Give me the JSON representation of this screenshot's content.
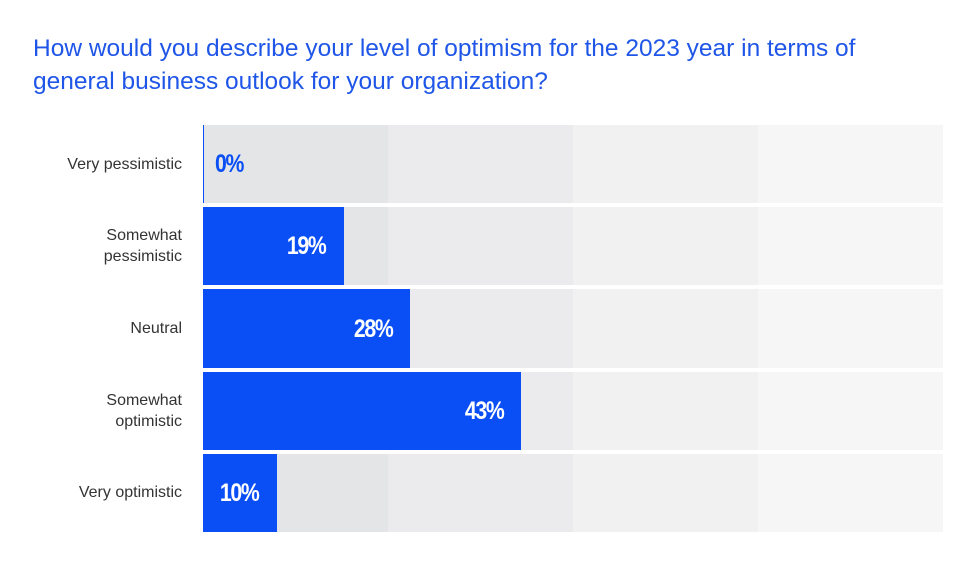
{
  "chart_data": {
    "type": "hbar",
    "title": "How would you describe your level of optimism for the 2023 year in terms of general business outlook for your organization?",
    "categories": [
      "Very pessimistic",
      "Somewhat pessimistic",
      "Neutral",
      "Somewhat optimistic",
      "Very optimistic"
    ],
    "values": [
      0,
      19,
      28,
      43,
      10
    ],
    "value_labels": [
      "0%",
      "19%",
      "28%",
      "43%",
      "10%"
    ],
    "color": "#0a4ff5",
    "xlim": [
      0,
      100
    ]
  }
}
